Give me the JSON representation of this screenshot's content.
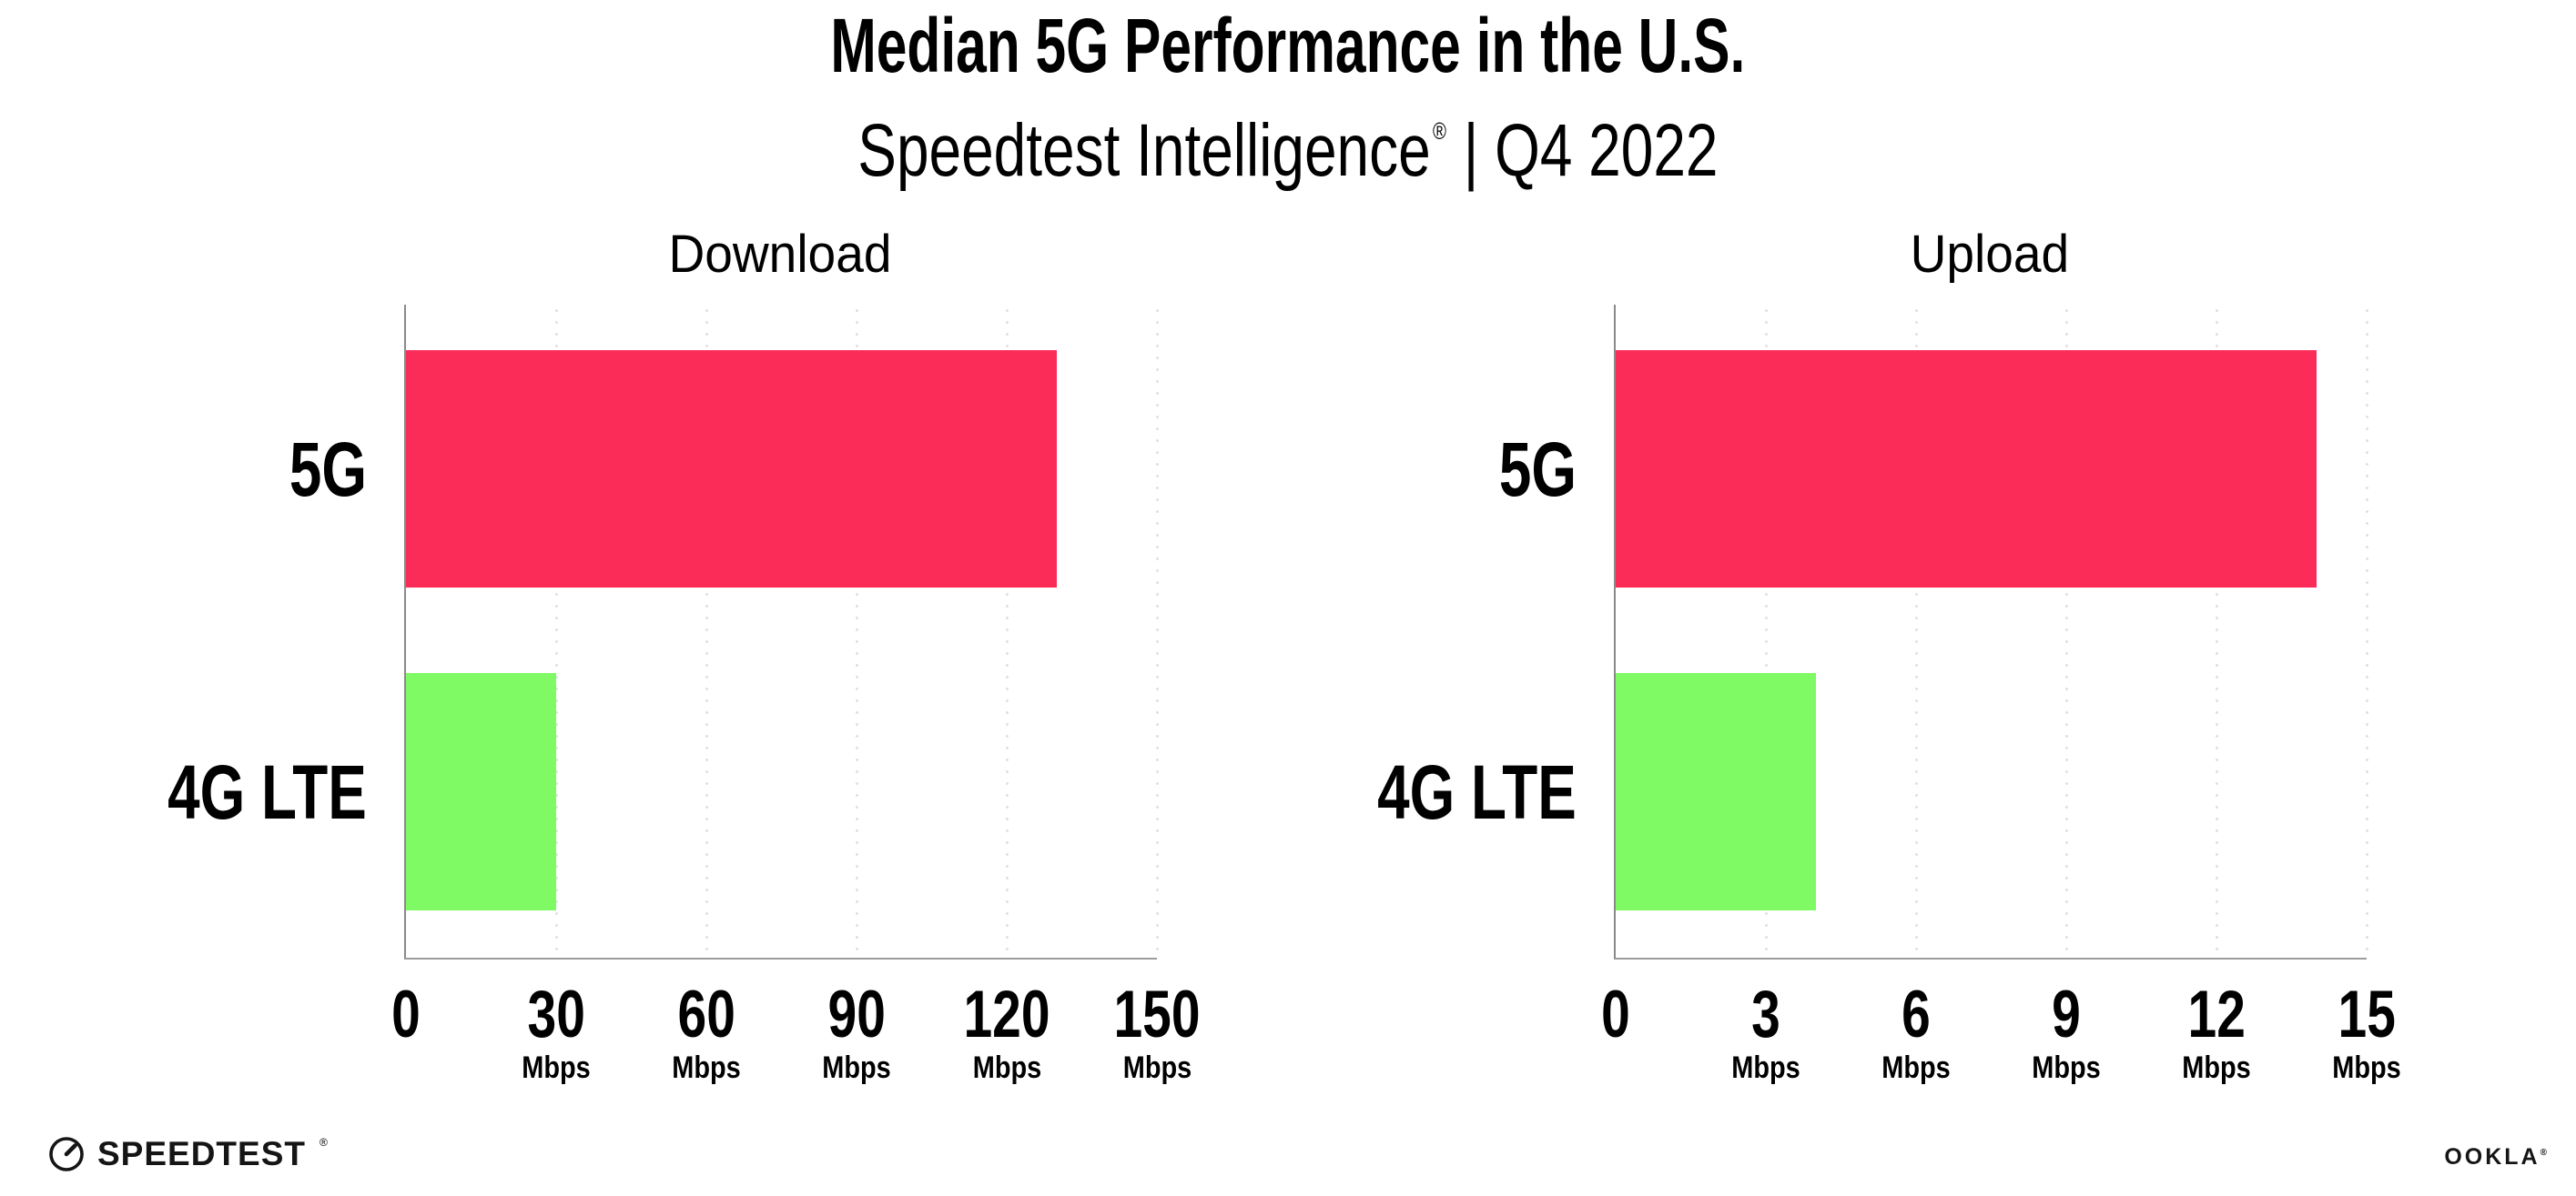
{
  "header": {
    "title": "Median 5G Performance in the U.S.",
    "subtitle_brand": "Speedtest Intelligence",
    "subtitle_reg": "®",
    "subtitle_rest": "| Q4 2022"
  },
  "chart_data": [
    {
      "type": "bar",
      "orientation": "horizontal",
      "title": "Download",
      "categories": [
        "5G",
        "4G LTE"
      ],
      "values": [
        130,
        30
      ],
      "value_unit": "Mbps",
      "xlim": [
        0,
        150
      ],
      "xticks": [
        0,
        30,
        60,
        90,
        120,
        150
      ],
      "xtick_unit": "Mbps",
      "bar_colors": [
        "#FB2D58",
        "#80FA64"
      ],
      "grid": "vertical dotted",
      "legend": "none"
    },
    {
      "type": "bar",
      "orientation": "horizontal",
      "title": "Upload",
      "categories": [
        "5G",
        "4G LTE"
      ],
      "values": [
        14,
        4
      ],
      "value_unit": "Mbps",
      "xlim": [
        0,
        15
      ],
      "xticks": [
        0,
        3,
        6,
        9,
        12,
        15
      ],
      "xtick_unit": "Mbps",
      "bar_colors": [
        "#FB2D58",
        "#80FA64"
      ],
      "grid": "vertical dotted",
      "legend": "none"
    }
  ],
  "colors": {
    "bar_5g": "#FB2D58",
    "bar_4g_lte": "#80FA64",
    "gridline_dot": "#DEDEE8",
    "axis_line": "#9C9C9C",
    "text": "#000000"
  },
  "footer": {
    "speedtest_label": "SPEEDTEST",
    "speedtest_reg": "®",
    "ookla_label": "OOKLA",
    "ookla_reg": "®"
  }
}
